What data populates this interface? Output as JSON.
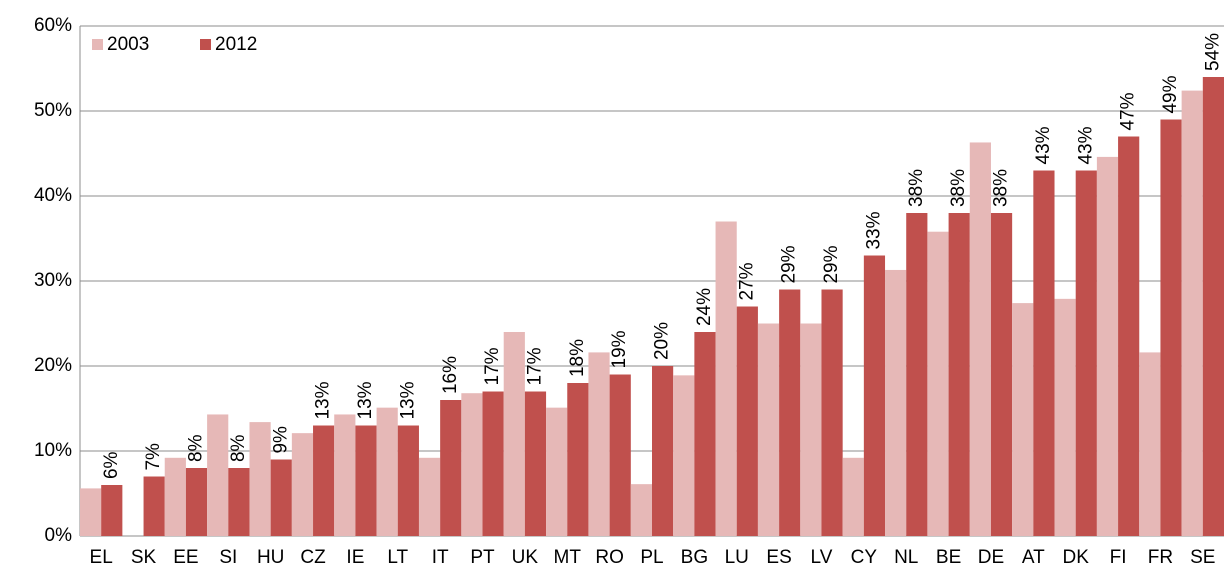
{
  "chart_data": {
    "type": "bar",
    "categories": [
      "EL",
      "SK",
      "EE",
      "SI",
      "HU",
      "CZ",
      "IE",
      "LT",
      "IT",
      "PT",
      "UK",
      "MT",
      "RO",
      "PL",
      "BG",
      "LU",
      "ES",
      "LV",
      "CY",
      "NL",
      "BE",
      "DE",
      "AT",
      "DK",
      "FI",
      "FR",
      "SE"
    ],
    "series": [
      {
        "name": "2003",
        "color": "#e6b8b7",
        "values": [
          5.6,
          null,
          9.2,
          14.3,
          13.4,
          12.1,
          14.3,
          15.1,
          9.2,
          16.8,
          24,
          15.1,
          21.6,
          6.1,
          18.9,
          37,
          25,
          25,
          9.2,
          31.3,
          35.8,
          46.3,
          27.4,
          27.9,
          44.6,
          21.6,
          52.4
        ]
      },
      {
        "name": "2012",
        "color": "#c0504d",
        "values": [
          6,
          7,
          8,
          8,
          9,
          13,
          13,
          13,
          16,
          17,
          17,
          18,
          19,
          20,
          24,
          27,
          29,
          29,
          33,
          38,
          38,
          38,
          43,
          43,
          47,
          49,
          54
        ],
        "value_labels": [
          "6%",
          "7%",
          "8%",
          "8%",
          "9%",
          "13%",
          "13%",
          "13%",
          "16%",
          "17%",
          "17%",
          "18%",
          "19%",
          "20%",
          "24%",
          "27%",
          "29%",
          "29%",
          "33%",
          "38%",
          "38%",
          "38%",
          "43%",
          "43%",
          "47%",
          "49%",
          "54%"
        ]
      }
    ],
    "ylim": [
      0,
      60
    ],
    "yticks": [
      {
        "value": 0,
        "label": "0%"
      },
      {
        "value": 10,
        "label": "10%"
      },
      {
        "value": 20,
        "label": "20%"
      },
      {
        "value": 30,
        "label": "30%"
      },
      {
        "value": 40,
        "label": "40%"
      },
      {
        "value": 50,
        "label": "50%"
      },
      {
        "value": 60,
        "label": "60%"
      }
    ],
    "grid": true,
    "legend": "top-left"
  }
}
